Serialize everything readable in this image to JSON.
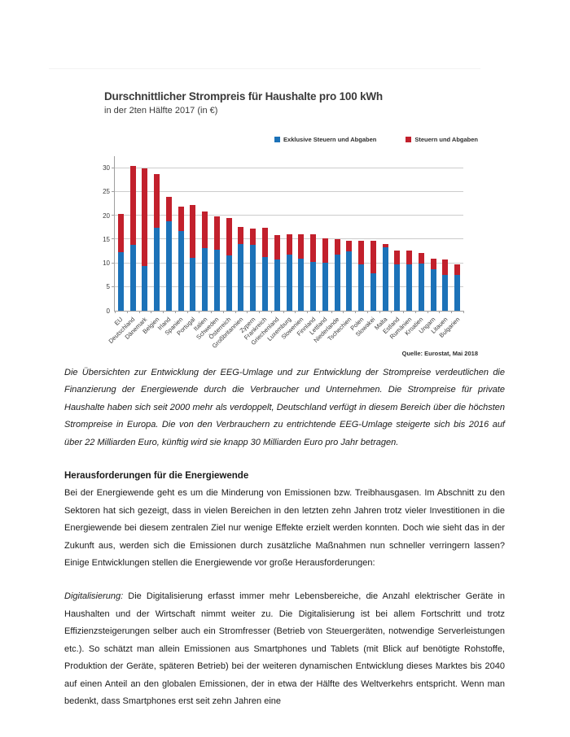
{
  "chart_data": {
    "type": "bar",
    "stacked": true,
    "title": "Durschnittlicher Strompreis für Haushalte pro 100 kWh",
    "subtitle": "in der 2ten Hälfte 2017 (in €)",
    "source": "Quelle: Eurostat, Mai 2018",
    "categories": [
      "EU",
      "Deutschland",
      "Dänemark",
      "Belgien",
      "Irland",
      "Spanien",
      "Portugal",
      "Italien",
      "Schweden",
      "Österreich",
      "Großbritannien",
      "Zypern",
      "Frankreich",
      "Griechenland",
      "Luxemburg",
      "Slowenien",
      "Finnland",
      "Lettland",
      "Niederlande",
      "Tschechien",
      "Polen",
      "Slowakei",
      "Malta",
      "Estland",
      "Rumänien",
      "Kroatien",
      "Ungarn",
      "Litauen",
      "Bulgarien"
    ],
    "series": [
      {
        "name": "Exklusive Steuern und Abgaben",
        "color": "#1c72b8",
        "values": [
          12.4,
          13.9,
          9.4,
          17.4,
          18.9,
          16.7,
          11.2,
          13.1,
          12.8,
          11.7,
          14.1,
          13.9,
          11.3,
          10.8,
          11.8,
          10.9,
          10.2,
          10.1,
          11.8,
          12.5,
          9.7,
          7.8,
          13.4,
          9.7,
          9.7,
          9.9,
          8.7,
          7.6,
          7.6
        ]
      },
      {
        "name": "Steuern und Abgaben",
        "color": "#c2202c",
        "values": [
          8.0,
          16.5,
          20.6,
          11.3,
          5.0,
          5.2,
          11.1,
          7.7,
          7.1,
          7.8,
          3.6,
          3.4,
          6.1,
          5.1,
          4.2,
          5.1,
          5.8,
          5.2,
          3.3,
          2.3,
          5.0,
          6.9,
          0.6,
          3.0,
          3.0,
          2.3,
          2.2,
          3.2,
          2.1
        ]
      }
    ],
    "totals": [
      20.4,
      30.4,
      30.0,
      28.7,
      23.9,
      21.9,
      22.3,
      20.8,
      19.9,
      19.5,
      17.7,
      17.3,
      17.4,
      15.9,
      16.0,
      16.0,
      16.0,
      15.3,
      15.1,
      14.8,
      14.7,
      14.7,
      14.0,
      12.7,
      12.7,
      12.2,
      10.9,
      10.8,
      9.7
    ],
    "ylabel": "",
    "xlabel": "",
    "ylim": [
      0,
      32.5
    ],
    "yticks": [
      0,
      5,
      10,
      15,
      20,
      25,
      30
    ],
    "grid": true,
    "legend_position": "top-right"
  },
  "document": {
    "paragraph_intro": "Die Übersichten zur Entwicklung der EEG-Umlage und zur Entwicklung der Strompreise verdeutlichen die Finanzierung der Energiewende durch die Verbraucher und Unternehmen. Die Strompreise für private Haushalte haben sich seit 2000 mehr als verdoppelt, Deutschland verfügt in diesem Bereich über die höchsten Strompreise in Europa. Die von den Verbrauchern zu entrichtende EEG-Umlage steigerte sich bis 2016 auf über 22 Milliarden Euro, künftig wird sie knapp 30 Milliarden Euro pro Jahr betragen.",
    "heading": "Herausforderungen für die Energiewende",
    "paragraph_energiewende": "Bei der Energiewende geht es um die Minderung von Emissionen bzw. Treibhausgasen. Im Abschnitt zu den Sektoren hat sich gezeigt, dass in vielen Bereichen in den letzten zehn Jahren trotz vieler Investitionen in die Energiewende bei diesem zentralen Ziel nur wenige Effekte erzielt werden konnten. Doch wie sieht das in der Zukunft aus, werden sich die Emissionen durch zusätzliche Maßnahmen nun schneller verringern lassen? Einige Entwicklungen stellen die Energiewende vor große Herausforderungen:",
    "paragraph_digitalisierung_lead": "Digitalisierung:",
    "paragraph_digitalisierung_rest": " Die Digitalisierung erfasst immer mehr Lebensbereiche, die Anzahl elektrischer Geräte in Haushalten und der Wirtschaft nimmt weiter zu. Die Digitalisierung ist bei allem Fortschritt und trotz Effizienzsteigerungen selber auch ein Stromfresser (Betrieb von Steuergeräten, notwendige Serverleistungen etc.). So schätzt man allein Emissionen aus Smartphones und Tablets (mit Blick auf benötigte Rohstoffe, Produktion der Geräte, späteren Betrieb) bei der weiteren dynamischen Entwicklung dieses Marktes bis 2040 auf einen Anteil an den globalen Emissionen, der in etwa der Hälfte des Weltverkehrs entspricht. Wenn man bedenkt, dass Smartphones erst seit zehn Jahren eine"
  }
}
